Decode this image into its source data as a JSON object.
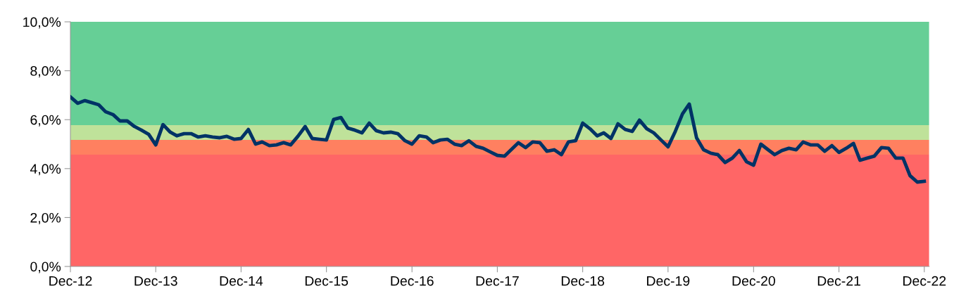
{
  "chart_data": {
    "type": "line",
    "x": [
      "2012-12",
      "2013-01",
      "2013-02",
      "2013-03",
      "2013-04",
      "2013-05",
      "2013-06",
      "2013-07",
      "2013-08",
      "2013-09",
      "2013-10",
      "2013-11",
      "2013-12",
      "2014-01",
      "2014-02",
      "2014-03",
      "2014-04",
      "2014-05",
      "2014-06",
      "2014-07",
      "2014-08",
      "2014-09",
      "2014-10",
      "2014-11",
      "2014-12",
      "2015-01",
      "2015-02",
      "2015-03",
      "2015-04",
      "2015-05",
      "2015-06",
      "2015-07",
      "2015-08",
      "2015-09",
      "2015-10",
      "2015-11",
      "2015-12",
      "2016-01",
      "2016-02",
      "2016-03",
      "2016-04",
      "2016-05",
      "2016-06",
      "2016-07",
      "2016-08",
      "2016-09",
      "2016-10",
      "2016-11",
      "2016-12",
      "2017-01",
      "2017-02",
      "2017-03",
      "2017-04",
      "2017-05",
      "2017-06",
      "2017-07",
      "2017-08",
      "2017-09",
      "2017-10",
      "2017-11",
      "2017-12",
      "2018-01",
      "2018-02",
      "2018-03",
      "2018-04",
      "2018-05",
      "2018-06",
      "2018-07",
      "2018-08",
      "2018-09",
      "2018-10",
      "2018-11",
      "2018-12",
      "2019-01",
      "2019-02",
      "2019-03",
      "2019-04",
      "2019-05",
      "2019-06",
      "2019-07",
      "2019-08",
      "2019-09",
      "2019-10",
      "2019-11",
      "2019-12",
      "2020-01",
      "2020-02",
      "2020-03",
      "2020-04",
      "2020-05",
      "2020-06",
      "2020-07",
      "2020-08",
      "2020-09",
      "2020-10",
      "2020-11",
      "2020-12",
      "2021-01",
      "2021-02",
      "2021-03",
      "2021-04",
      "2021-05",
      "2021-06",
      "2021-07",
      "2021-08",
      "2021-09",
      "2021-10",
      "2021-11",
      "2021-12",
      "2022-01",
      "2022-02",
      "2022-03",
      "2022-04",
      "2022-05",
      "2022-06",
      "2022-07",
      "2022-08",
      "2022-09",
      "2022-10",
      "2022-11",
      "2022-12"
    ],
    "series": [
      {
        "color": "#003366",
        "values": [
          6.93,
          6.67,
          6.78,
          6.7,
          6.61,
          6.32,
          6.21,
          5.95,
          5.95,
          5.72,
          5.57,
          5.4,
          4.97,
          5.8,
          5.49,
          5.34,
          5.43,
          5.43,
          5.29,
          5.34,
          5.29,
          5.26,
          5.32,
          5.2,
          5.23,
          5.6,
          5.0,
          5.09,
          4.94,
          4.97,
          5.06,
          4.97,
          5.32,
          5.72,
          5.23,
          5.2,
          5.17,
          6.01,
          6.09,
          5.66,
          5.57,
          5.46,
          5.86,
          5.55,
          5.46,
          5.49,
          5.43,
          5.14,
          5.0,
          5.34,
          5.29,
          5.06,
          5.17,
          5.2,
          5.0,
          4.94,
          5.14,
          4.91,
          4.83,
          4.68,
          4.54,
          4.51,
          4.8,
          5.06,
          4.86,
          5.09,
          5.06,
          4.71,
          4.77,
          4.57,
          5.09,
          5.14,
          5.86,
          5.63,
          5.34,
          5.46,
          5.23,
          5.83,
          5.6,
          5.52,
          5.98,
          5.63,
          5.46,
          5.17,
          4.89,
          5.52,
          6.24,
          6.64,
          5.26,
          4.77,
          4.63,
          4.57,
          4.25,
          4.43,
          4.74,
          4.28,
          4.14,
          5.0,
          4.77,
          4.57,
          4.74,
          4.83,
          4.77,
          5.09,
          4.97,
          4.97,
          4.71,
          4.94,
          4.66,
          4.83,
          5.03,
          4.34,
          4.43,
          4.51,
          4.86,
          4.83,
          4.43,
          4.43,
          3.71,
          3.45,
          3.48
        ]
      }
    ],
    "bands": [
      {
        "axis": "y",
        "from": 0,
        "to": 4.57,
        "color": "#ff6666"
      },
      {
        "axis": "y",
        "from": 4.57,
        "to": 5.17,
        "color": "#ff8060"
      },
      {
        "axis": "y",
        "from": 5.17,
        "to": 5.78,
        "color": "#bfe29a"
      },
      {
        "axis": "y",
        "from": 5.78,
        "to": 10,
        "color": "#66cf96"
      }
    ],
    "ylim": [
      0,
      10
    ],
    "yticks": [
      {
        "value": 0,
        "label": "0,0%"
      },
      {
        "value": 2,
        "label": "2,0%"
      },
      {
        "value": 4,
        "label": "4,0%"
      },
      {
        "value": 6,
        "label": "6,0%"
      },
      {
        "value": 8,
        "label": "8,0%"
      },
      {
        "value": 10,
        "label": "10,0%"
      }
    ],
    "xlim": [
      "2012-12",
      "2022-12-22"
    ],
    "xticks": [
      {
        "value": "2012-12",
        "label": "Dec-12"
      },
      {
        "value": "2013-12",
        "label": "Dec-13"
      },
      {
        "value": "2014-12",
        "label": "Dec-14"
      },
      {
        "value": "2015-12",
        "label": "Dec-15"
      },
      {
        "value": "2016-12",
        "label": "Dec-16"
      },
      {
        "value": "2017-12",
        "label": "Dec-17"
      },
      {
        "value": "2018-12",
        "label": "Dec-18"
      },
      {
        "value": "2019-12",
        "label": "Dec-19"
      },
      {
        "value": "2020-12",
        "label": "Dec-20"
      },
      {
        "value": "2021-12",
        "label": "Dec-21"
      },
      {
        "value": "2022-12",
        "label": "Dec-22"
      }
    ],
    "grid": false,
    "marker": "none",
    "line_style": "solid"
  }
}
